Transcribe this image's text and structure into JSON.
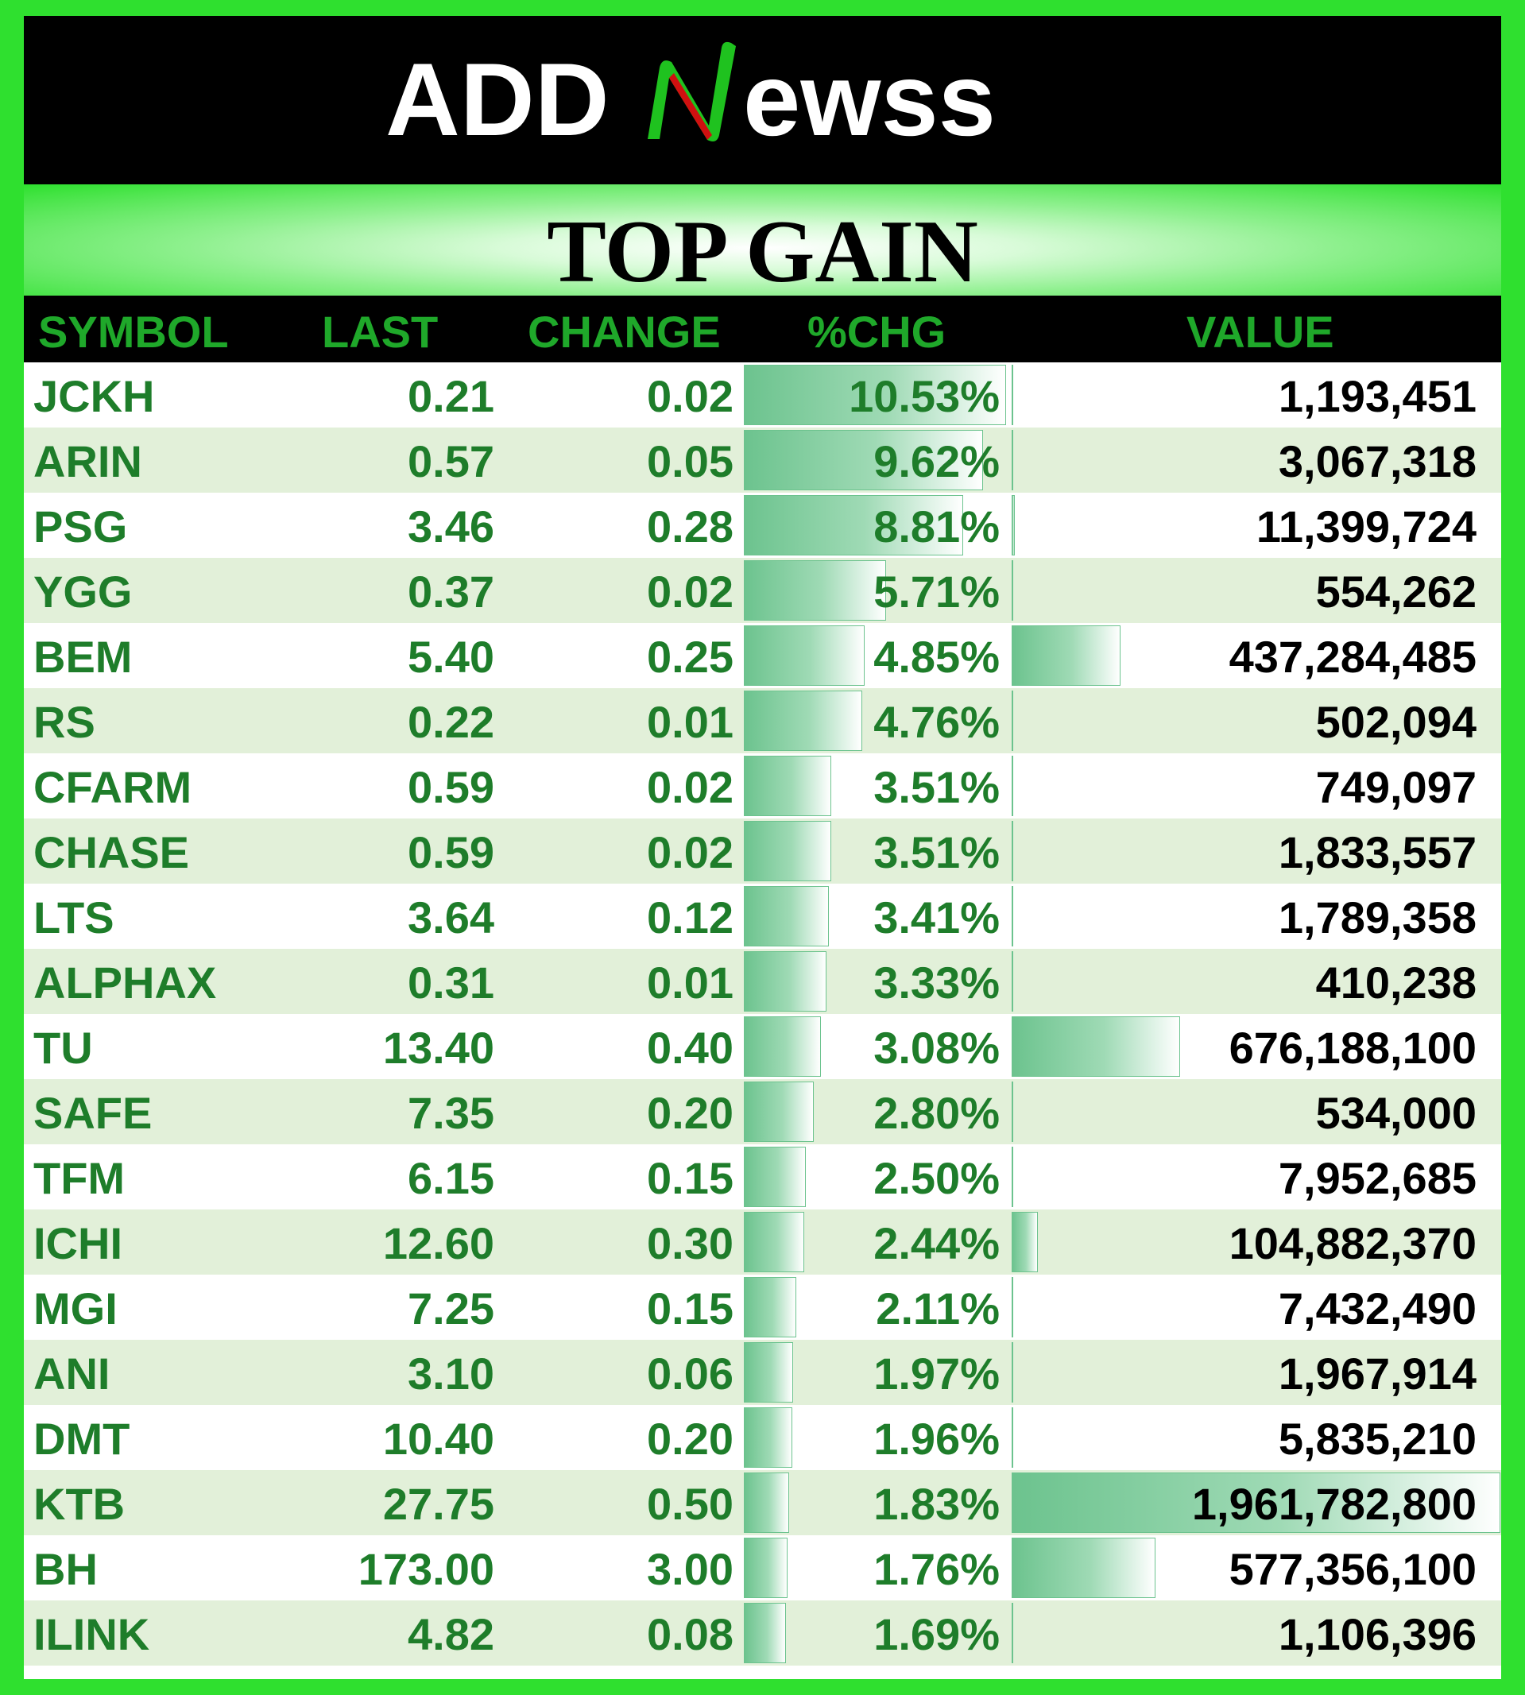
{
  "brand": {
    "logo_text": "ADDNEWSS",
    "logo_part_left": "ADD",
    "logo_part_right": "ewss",
    "colors": {
      "text": "#ffffff",
      "n_green": "#1fc21f",
      "n_red": "#d01010"
    }
  },
  "title": "TOP GAIN",
  "colors": {
    "frame_green": "#2fe02f",
    "header_text": "#1fa82a",
    "body_text": "#1e7d2a",
    "value_text": "#000000",
    "alt_row": "#e2f0d9",
    "bar": "#6cc38e"
  },
  "columns": {
    "symbol": "SYMBOL",
    "last": "LAST",
    "change": "CHANGE",
    "pct_chg": "%CHG",
    "value": "VALUE"
  },
  "rows": [
    {
      "symbol": "JCKH",
      "last": "0.21",
      "change": "0.02",
      "pct_chg": "10.53%",
      "value": "1,193,451"
    },
    {
      "symbol": "ARIN",
      "last": "0.57",
      "change": "0.05",
      "pct_chg": "9.62%",
      "value": "3,067,318"
    },
    {
      "symbol": "PSG",
      "last": "3.46",
      "change": "0.28",
      "pct_chg": "8.81%",
      "value": "11,399,724"
    },
    {
      "symbol": "YGG",
      "last": "0.37",
      "change": "0.02",
      "pct_chg": "5.71%",
      "value": "554,262"
    },
    {
      "symbol": "BEM",
      "last": "5.40",
      "change": "0.25",
      "pct_chg": "4.85%",
      "value": "437,284,485"
    },
    {
      "symbol": "RS",
      "last": "0.22",
      "change": "0.01",
      "pct_chg": "4.76%",
      "value": "502,094"
    },
    {
      "symbol": "CFARM",
      "last": "0.59",
      "change": "0.02",
      "pct_chg": "3.51%",
      "value": "749,097"
    },
    {
      "symbol": "CHASE",
      "last": "0.59",
      "change": "0.02",
      "pct_chg": "3.51%",
      "value": "1,833,557"
    },
    {
      "symbol": "LTS",
      "last": "3.64",
      "change": "0.12",
      "pct_chg": "3.41%",
      "value": "1,789,358"
    },
    {
      "symbol": "ALPHAX",
      "last": "0.31",
      "change": "0.01",
      "pct_chg": "3.33%",
      "value": "410,238"
    },
    {
      "symbol": "TU",
      "last": "13.40",
      "change": "0.40",
      "pct_chg": "3.08%",
      "value": "676,188,100"
    },
    {
      "symbol": "SAFE",
      "last": "7.35",
      "change": "0.20",
      "pct_chg": "2.80%",
      "value": "534,000"
    },
    {
      "symbol": "TFM",
      "last": "6.15",
      "change": "0.15",
      "pct_chg": "2.50%",
      "value": "7,952,685"
    },
    {
      "symbol": "ICHI",
      "last": "12.60",
      "change": "0.30",
      "pct_chg": "2.44%",
      "value": "104,882,370"
    },
    {
      "symbol": "MGI",
      "last": "7.25",
      "change": "0.15",
      "pct_chg": "2.11%",
      "value": "7,432,490"
    },
    {
      "symbol": "ANI",
      "last": "3.10",
      "change": "0.06",
      "pct_chg": "1.97%",
      "value": "1,967,914"
    },
    {
      "symbol": "DMT",
      "last": "10.40",
      "change": "0.20",
      "pct_chg": "1.96%",
      "value": "5,835,210"
    },
    {
      "symbol": "KTB",
      "last": "27.75",
      "change": "0.50",
      "pct_chg": "1.83%",
      "value": "1,961,782,800"
    },
    {
      "symbol": "BH",
      "last": "173.00",
      "change": "3.00",
      "pct_chg": "1.76%",
      "value": "577,356,100"
    },
    {
      "symbol": "ILINK",
      "last": "4.82",
      "change": "0.08",
      "pct_chg": "1.69%",
      "value": "1,106,396"
    }
  ],
  "data_bars": {
    "pct_chg_max": 10.53,
    "value_max": 1961782800
  }
}
